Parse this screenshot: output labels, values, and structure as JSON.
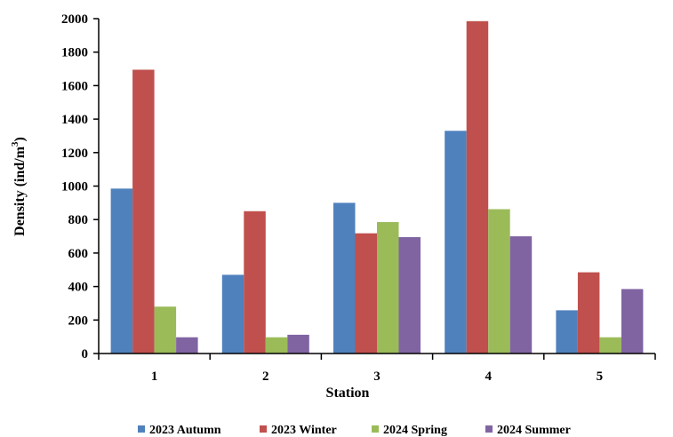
{
  "chart_data": {
    "type": "bar",
    "title": "",
    "xlabel": "Station",
    "ylabel": "Density (ind/m3)",
    "ylabel_parts": {
      "main": "Density (ind/m",
      "sup": "3",
      "close": ")"
    },
    "categories": [
      "1",
      "2",
      "3",
      "4",
      "5"
    ],
    "ylim": [
      0,
      2000
    ],
    "yticks": [
      "0",
      "200",
      "400",
      "600",
      "800",
      "1000",
      "1200",
      "1400",
      "1600",
      "1800",
      "2000"
    ],
    "grid": false,
    "legend_position": "bottom",
    "series": [
      {
        "name": "2023 Autumn",
        "color": "#4F81BD",
        "values": [
          985,
          470,
          900,
          1330,
          258
        ]
      },
      {
        "name": "2023 Winter",
        "color": "#C0504D",
        "values": [
          1695,
          850,
          718,
          1985,
          485
        ]
      },
      {
        "name": "2024 Spring",
        "color": "#9BBB59",
        "values": [
          280,
          97,
          785,
          862,
          97
        ]
      },
      {
        "name": "2024 Summer",
        "color": "#8064A2",
        "values": [
          97,
          112,
          695,
          700,
          385
        ]
      }
    ]
  }
}
